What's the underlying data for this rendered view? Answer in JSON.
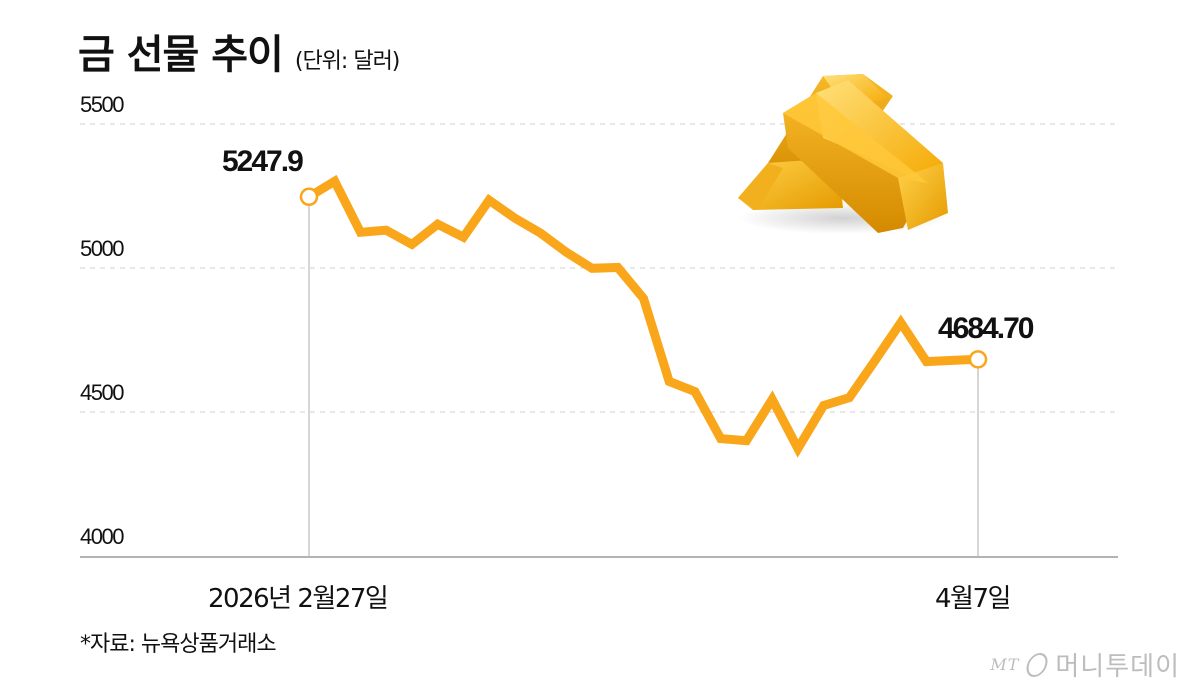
{
  "header": {
    "title": "금 선물 추이",
    "unit": "(단위: 달러)"
  },
  "chart_data": {
    "type": "line",
    "title": "금 선물 추이",
    "subtitle": "(단위: 달러)",
    "xlabel": "",
    "ylabel": "",
    "ylim": [
      4000,
      5500
    ],
    "yticks": [
      "5500",
      "5000",
      "4500",
      "4000"
    ],
    "xtick_labels": [
      "2026년 2월27일",
      "4월7일"
    ],
    "grid": "horizontal dashed",
    "legend": null,
    "color": "#FAA61A",
    "series": [
      {
        "name": "금 선물",
        "values": [
          5247.9,
          5302,
          5125,
          5132,
          5083,
          5153,
          5108,
          5236,
          5174,
          5122,
          5056,
          5000,
          5003,
          4896,
          4608,
          4573,
          4410,
          4403,
          4546,
          4376,
          4525,
          4552,
          4681,
          4812,
          4677,
          4681,
          4684.7
        ]
      }
    ],
    "annotations": [
      {
        "label": "5247.9",
        "point": "start",
        "date": "2026년 2월27일"
      },
      {
        "label": "4684.70",
        "point": "end",
        "date": "4월7일"
      }
    ]
  },
  "annotations": {
    "start_value": "5247.9",
    "end_value": "4684.70"
  },
  "axis": {
    "y_ticks": [
      "5500",
      "5000",
      "4500",
      "4000"
    ],
    "x_start": "2026년 2월27일",
    "x_end": "4월7일"
  },
  "footer": {
    "source": "*자료: 뉴욕상품거래소",
    "logo_mt": "MT",
    "logo_text": "머니투데이"
  },
  "colors": {
    "line": "#FAA61A",
    "grid": "#d9d9d9",
    "axis": "#999999"
  }
}
